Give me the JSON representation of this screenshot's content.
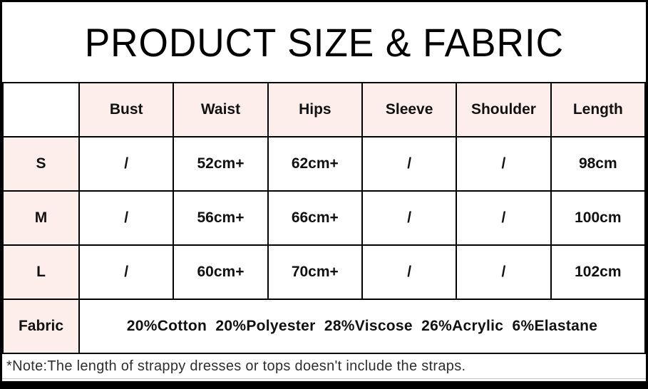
{
  "title": "PRODUCT SIZE & FABRIC",
  "size_table": {
    "columns": [
      "",
      "Bust",
      "Waist",
      "Hips",
      "Sleeve",
      "Shoulder",
      "Length"
    ],
    "rows": [
      {
        "label": "S",
        "values": [
          "/",
          "52cm+",
          "62cm+",
          "/",
          "/",
          "98cm"
        ]
      },
      {
        "label": "M",
        "values": [
          "/",
          "56cm+",
          "66cm+",
          "/",
          "/",
          "100cm"
        ]
      },
      {
        "label": "L",
        "values": [
          "/",
          "60cm+",
          "70cm+",
          "/",
          "/",
          "102cm"
        ]
      }
    ],
    "fabric_label": "Fabric",
    "fabric_value": "20%Cotton  20%Polyester  28%Viscose  26%Acrylic  6%Elastane"
  },
  "note": "*Note:The length of strappy dresses or tops doesn't include the straps.",
  "colors": {
    "pink": "#fdeeec",
    "border": "#000000",
    "text": "#111111",
    "note_text": "#2e2e2e",
    "note_rule": "#c4c4c4"
  }
}
